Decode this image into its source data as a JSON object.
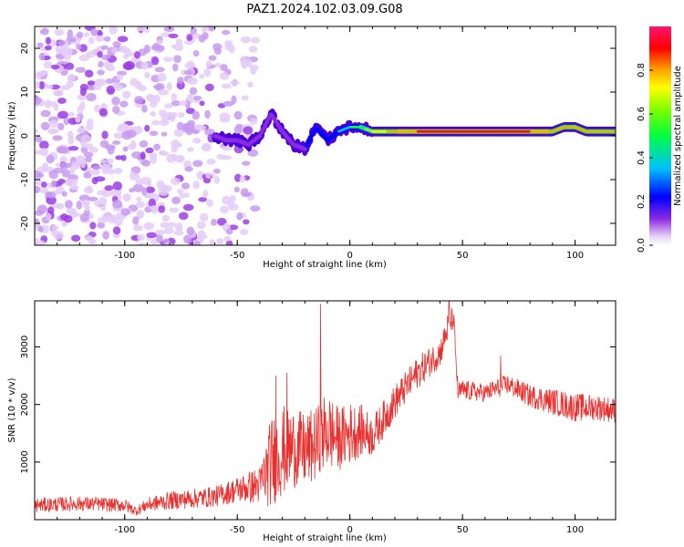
{
  "title": "PAZ1.2024.102.03.09.G08",
  "chart_data": [
    {
      "type": "heatmap",
      "xlabel": "Height of straight line (km)",
      "ylabel": "Frequency (Hz)",
      "xlim": [
        -140,
        118
      ],
      "ylim": [
        -25,
        25
      ],
      "xticks": [
        -100,
        -50,
        0,
        50,
        100
      ],
      "yticks": [
        -20,
        -10,
        0,
        10,
        20
      ],
      "colorbar": {
        "label": "Normalized spectral amplitude",
        "range": [
          0.0,
          1.0
        ],
        "ticks": [
          0.0,
          0.2,
          0.4,
          0.6,
          0.8
        ],
        "colormap": [
          "#e6d2f5",
          "#8a2be2",
          "#0000ff",
          "#00bfff",
          "#00ff7f",
          "#7fff00",
          "#ffff00",
          "#ffa500",
          "#ff0000",
          "#ff1493"
        ]
      },
      "noise_region": {
        "x": [
          -140,
          -42
        ],
        "freq": [
          -25,
          25
        ],
        "amplitude": 0.15
      },
      "ridge": {
        "x": [
          -60,
          -55,
          -50,
          -45,
          -40,
          -35,
          -30,
          -25,
          -20,
          -15,
          -10,
          -5,
          0,
          5,
          10,
          20,
          40,
          60,
          80,
          90,
          95,
          100,
          105,
          118
        ],
        "freq": [
          0,
          -1,
          -1,
          -2,
          0,
          5,
          1,
          -2,
          -3,
          2,
          -1,
          1,
          2,
          2,
          1,
          1,
          1,
          1,
          1,
          1,
          2,
          2,
          1,
          1
        ],
        "amplitude": [
          0.2,
          0.2,
          0.2,
          0.25,
          0.3,
          0.3,
          0.3,
          0.35,
          0.35,
          0.4,
          0.4,
          0.45,
          0.5,
          0.55,
          0.7,
          0.85,
          0.95,
          0.95,
          0.9,
          0.85,
          0.8,
          0.85,
          0.8,
          0.8
        ]
      }
    },
    {
      "type": "line",
      "xlabel": "Height of straight line (km)",
      "ylabel": "SNR (10 * v/v)",
      "xlim": [
        -140,
        118
      ],
      "ylim": [
        0,
        3800
      ],
      "xticks": [
        -100,
        -50,
        0,
        50,
        100
      ],
      "yticks": [
        1000,
        2000,
        3000
      ],
      "color": "#e8312f",
      "x": [
        -140,
        -120,
        -100,
        -95,
        -90,
        -80,
        -60,
        -50,
        -40,
        -35,
        -30,
        -25,
        -20,
        -15,
        -10,
        -5,
        0,
        5,
        10,
        20,
        30,
        40,
        44,
        46,
        48,
        50,
        60,
        70,
        80,
        90,
        100,
        110,
        118
      ],
      "mean": [
        250,
        280,
        250,
        150,
        260,
        330,
        400,
        520,
        600,
        1000,
        1200,
        1250,
        1200,
        1300,
        1550,
        1400,
        1500,
        1550,
        1450,
        2050,
        2550,
        2900,
        3400,
        3500,
        2200,
        2250,
        2200,
        2350,
        2150,
        2050,
        1950,
        1950,
        1900
      ],
      "spread": [
        130,
        130,
        120,
        80,
        120,
        160,
        180,
        230,
        330,
        800,
        800,
        700,
        650,
        650,
        700,
        550,
        550,
        450,
        350,
        300,
        280,
        250,
        250,
        200,
        180,
        180,
        160,
        180,
        200,
        230,
        250,
        230,
        220
      ],
      "spikes": [
        {
          "x": -33,
          "y": 2500
        },
        {
          "x": -28,
          "y": 2550
        },
        {
          "x": -13,
          "y": 3750
        },
        {
          "x": 44,
          "y": 3800
        },
        {
          "x": 67,
          "y": 2850
        }
      ]
    }
  ]
}
